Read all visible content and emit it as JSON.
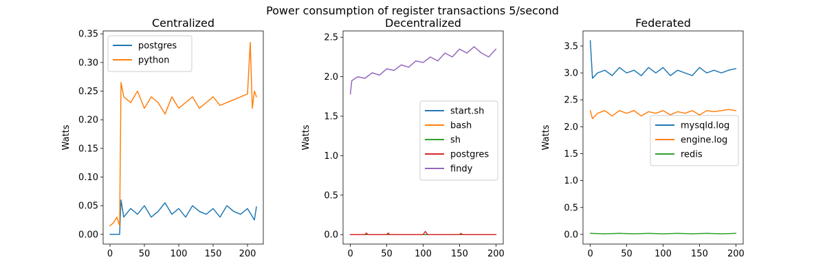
{
  "figure": {
    "suptitle": "Power consumption of register transactions 5/second"
  },
  "colors": {
    "c0": "#1f77b4",
    "c1": "#ff7f0e",
    "c2": "#2ca02c",
    "c3": "#d62728",
    "c4": "#9467bd"
  },
  "chart_data": [
    {
      "type": "line",
      "title": "Centralized",
      "xlabel": "",
      "ylabel": "Watts",
      "xlim": [
        -10,
        223
      ],
      "ylim": [
        -0.017,
        0.355
      ],
      "xticks": [
        0,
        50,
        100,
        150,
        200
      ],
      "yticks": [
        0.0,
        0.05,
        0.1,
        0.15,
        0.2,
        0.25,
        0.3,
        0.35
      ],
      "ytick_labels": [
        "0.00",
        "0.05",
        "0.10",
        "0.15",
        "0.20",
        "0.25",
        "0.30",
        "0.35"
      ],
      "legend": "upper left",
      "grid": false,
      "series": [
        {
          "name": "postgres",
          "color": "#1f77b4",
          "x": [
            0,
            14,
            16,
            20,
            30,
            40,
            50,
            60,
            70,
            80,
            90,
            100,
            110,
            120,
            130,
            140,
            150,
            160,
            170,
            180,
            190,
            200,
            210,
            213
          ],
          "y": [
            0.0,
            0.0,
            0.06,
            0.03,
            0.045,
            0.035,
            0.05,
            0.03,
            0.04,
            0.055,
            0.035,
            0.045,
            0.03,
            0.05,
            0.04,
            0.035,
            0.045,
            0.03,
            0.05,
            0.04,
            0.035,
            0.045,
            0.025,
            0.048
          ]
        },
        {
          "name": "python",
          "color": "#ff7f0e",
          "x": [
            0,
            5,
            10,
            14,
            16,
            20,
            30,
            40,
            50,
            60,
            70,
            80,
            90,
            100,
            110,
            120,
            130,
            140,
            150,
            160,
            170,
            180,
            190,
            200,
            204,
            207,
            210,
            213
          ],
          "y": [
            0.015,
            0.02,
            0.03,
            0.015,
            0.265,
            0.24,
            0.23,
            0.25,
            0.22,
            0.24,
            0.23,
            0.21,
            0.24,
            0.22,
            0.23,
            0.24,
            0.22,
            0.23,
            0.24,
            0.225,
            0.23,
            0.235,
            0.24,
            0.245,
            0.335,
            0.22,
            0.25,
            0.24
          ]
        }
      ]
    },
    {
      "type": "line",
      "title": "Decentralized",
      "xlabel": "",
      "ylabel": "Watts",
      "xlim": [
        -10,
        210
      ],
      "ylim": [
        -0.12,
        2.58
      ],
      "xticks": [
        0,
        50,
        100,
        150,
        200
      ],
      "yticks": [
        0.0,
        0.5,
        1.0,
        1.5,
        2.0,
        2.5
      ],
      "ytick_labels": [
        "0.0",
        "0.5",
        "1.0",
        "1.5",
        "2.0",
        "2.5"
      ],
      "legend": "center right",
      "grid": false,
      "series": [
        {
          "name": "start.sh",
          "color": "#1f77b4",
          "x": [
            0,
            200
          ],
          "y": [
            0.0,
            0.0
          ]
        },
        {
          "name": "bash",
          "color": "#ff7f0e",
          "x": [
            0,
            200
          ],
          "y": [
            0.0,
            0.0
          ]
        },
        {
          "name": "sh",
          "color": "#2ca02c",
          "x": [
            0,
            200
          ],
          "y": [
            0.0,
            0.0
          ]
        },
        {
          "name": "postgres",
          "color": "#d62728",
          "x": [
            0,
            20,
            22,
            24,
            50,
            52,
            54,
            100,
            103,
            106,
            150,
            152,
            154,
            200
          ],
          "y": [
            0.0,
            0.0,
            0.02,
            0.0,
            0.0,
            0.02,
            0.0,
            0.0,
            0.04,
            0.0,
            0.0,
            0.015,
            0.0,
            0.0
          ]
        },
        {
          "name": "findy",
          "color": "#9467bd",
          "x": [
            0,
            2,
            10,
            20,
            30,
            40,
            50,
            60,
            70,
            80,
            90,
            100,
            110,
            120,
            130,
            140,
            150,
            160,
            170,
            180,
            190,
            200
          ],
          "y": [
            1.78,
            1.95,
            2.0,
            1.98,
            2.05,
            2.02,
            2.1,
            2.08,
            2.15,
            2.12,
            2.2,
            2.18,
            2.25,
            2.2,
            2.3,
            2.25,
            2.35,
            2.3,
            2.38,
            2.3,
            2.25,
            2.35
          ]
        }
      ]
    },
    {
      "type": "line",
      "title": "Federated",
      "xlabel": "",
      "ylabel": "Watts",
      "xlim": [
        -10,
        210
      ],
      "ylim": [
        -0.18,
        3.78
      ],
      "xticks": [
        0,
        50,
        100,
        150,
        200
      ],
      "yticks": [
        0.0,
        0.5,
        1.0,
        1.5,
        2.0,
        2.5,
        3.0,
        3.5
      ],
      "ytick_labels": [
        "0.0",
        "0.5",
        "1.0",
        "1.5",
        "2.0",
        "2.5",
        "3.0",
        "3.5"
      ],
      "legend": "center right",
      "grid": false,
      "series": [
        {
          "name": "mysqld.log",
          "color": "#1f77b4",
          "x": [
            0,
            3,
            10,
            20,
            30,
            40,
            50,
            60,
            70,
            80,
            90,
            100,
            110,
            120,
            130,
            140,
            150,
            160,
            170,
            180,
            190,
            200
          ],
          "y": [
            3.6,
            2.9,
            3.0,
            3.05,
            2.95,
            3.1,
            3.0,
            3.05,
            2.95,
            3.1,
            3.0,
            3.1,
            2.95,
            3.05,
            3.0,
            2.95,
            3.1,
            3.0,
            3.05,
            3.0,
            3.05,
            3.08
          ]
        },
        {
          "name": "engine.log",
          "color": "#ff7f0e",
          "x": [
            0,
            3,
            10,
            20,
            30,
            40,
            50,
            60,
            70,
            80,
            90,
            100,
            110,
            120,
            130,
            140,
            150,
            160,
            170,
            180,
            190,
            200
          ],
          "y": [
            2.3,
            2.15,
            2.25,
            2.3,
            2.2,
            2.3,
            2.25,
            2.3,
            2.2,
            2.28,
            2.25,
            2.3,
            2.22,
            2.28,
            2.25,
            2.3,
            2.22,
            2.3,
            2.28,
            2.3,
            2.32,
            2.3
          ]
        },
        {
          "name": "redis",
          "color": "#2ca02c",
          "x": [
            0,
            20,
            40,
            60,
            80,
            100,
            120,
            140,
            160,
            180,
            200
          ],
          "y": [
            0.02,
            0.01,
            0.02,
            0.01,
            0.02,
            0.01,
            0.02,
            0.01,
            0.02,
            0.01,
            0.02
          ]
        }
      ]
    }
  ]
}
